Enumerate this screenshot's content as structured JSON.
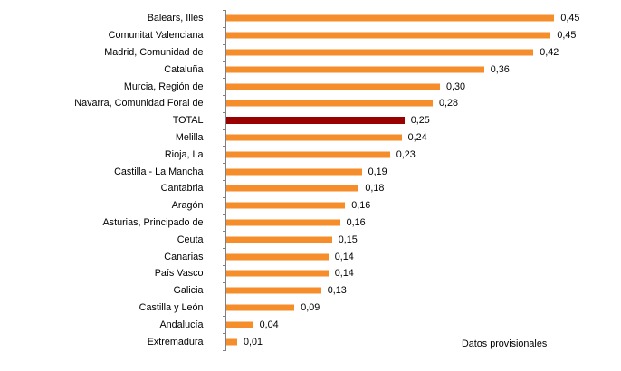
{
  "chart_data": {
    "type": "bar",
    "orientation": "horizontal",
    "title": "",
    "categories": [
      "Balears, Illes",
      "Comunitat Valenciana",
      "Madrid, Comunidad de",
      "Cataluña",
      "Murcia, Región de",
      "Navarra, Comunidad Foral de",
      "TOTAL",
      "Melilla",
      "Rioja, La",
      "Castilla - La Mancha",
      "Cantabria",
      "Aragón",
      "Asturias, Principado de",
      "Ceuta",
      "Canarias",
      "País Vasco",
      "Galicia",
      "Castilla y León",
      "Andalucía",
      "Extremadura"
    ],
    "values": [
      0.45,
      0.45,
      0.42,
      0.36,
      0.3,
      0.28,
      0.25,
      0.24,
      0.23,
      0.19,
      0.18,
      0.16,
      0.16,
      0.15,
      0.14,
      0.14,
      0.13,
      0.09,
      0.04,
      0.01
    ],
    "value_labels": [
      "0,45",
      "0,45",
      "0,42",
      "0,36",
      "0,30",
      "0,28",
      "0,25",
      "0,24",
      "0,23",
      "0,19",
      "0,18",
      "0,16",
      "0,16",
      "0,15",
      "0,14",
      "0,14",
      "0,13",
      "0,09",
      "0,04",
      "0,01"
    ],
    "values_unrounded_est": [
      0.453,
      0.448,
      0.424,
      0.356,
      0.295,
      0.285,
      0.246,
      0.242,
      0.226,
      0.187,
      0.183,
      0.164,
      0.157,
      0.146,
      0.141,
      0.141,
      0.131,
      0.094,
      0.037,
      0.015
    ],
    "highlighted_category": "TOTAL",
    "annotation": "Datos provisionales",
    "decimal_separator": ",",
    "xlim": [
      0,
      0.55
    ],
    "grid": false,
    "legend": "none",
    "colors": {
      "bar": "#F68D2B",
      "highlighted_bar": "#990000",
      "axis": "#808080",
      "text": "#000000"
    }
  }
}
